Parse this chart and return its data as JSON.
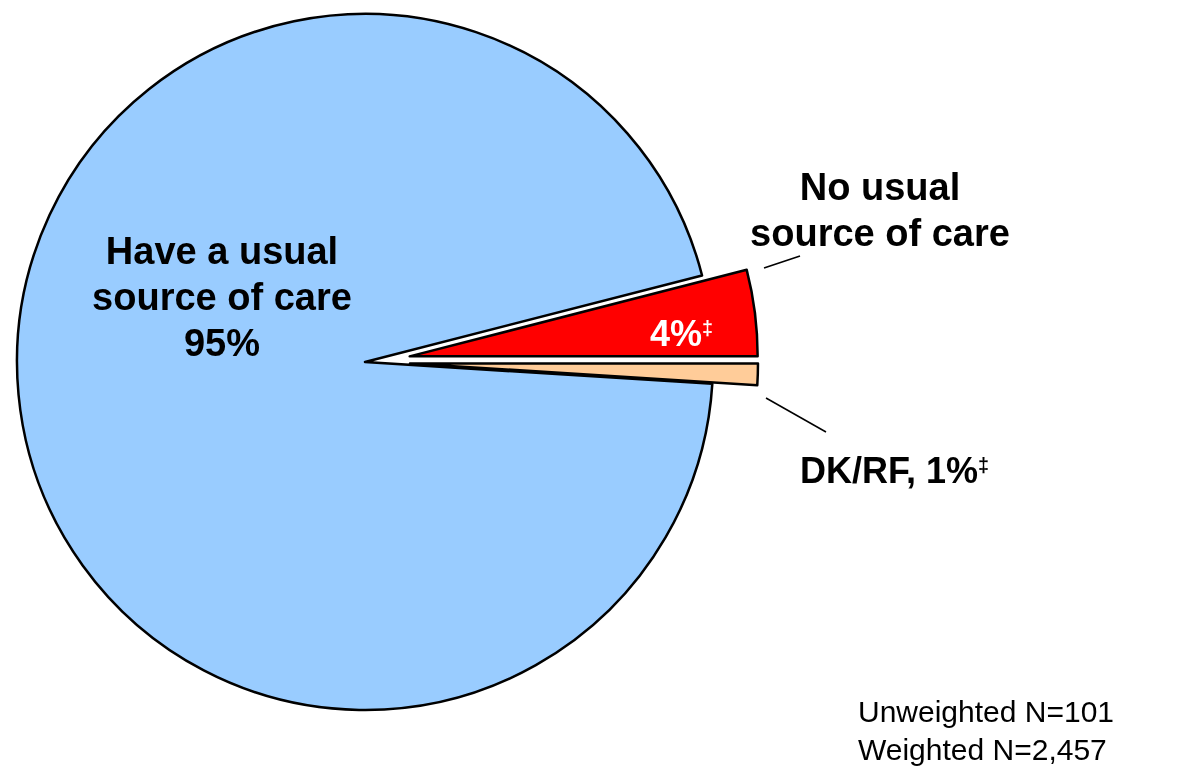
{
  "chart_data": {
    "type": "pie",
    "categories": [
      "Have a usual source of care",
      "No usual source of care",
      "DK/RF"
    ],
    "values": [
      95,
      4,
      1
    ],
    "colors": [
      "#99ccff",
      "#ff0000",
      "#ffcc99"
    ],
    "value_labels": [
      "95%",
      "4%$^{‡}$",
      ", 1%$^{‡}$"
    ],
    "annotations": [
      "Unweighted N=101",
      "Weighted N=2,457"
    ]
  }
}
